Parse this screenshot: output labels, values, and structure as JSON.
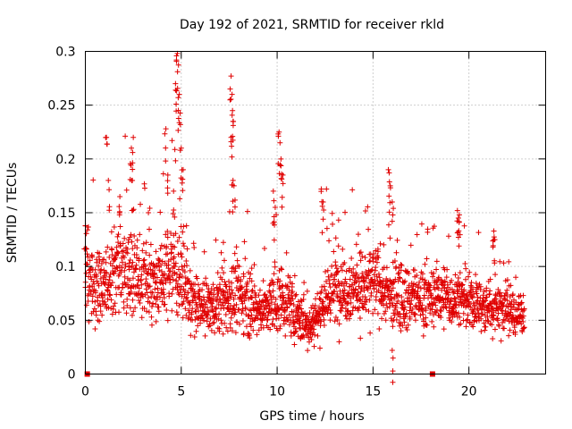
{
  "chart_data": {
    "type": "scatter",
    "title": "Day 192 of 2021, SRMTID for receiver rkld",
    "xlabel": "GPS time / hours",
    "ylabel": "SRMTID / TECUs",
    "xlim": [
      0,
      24
    ],
    "ylim": [
      0,
      0.3
    ],
    "xticks": [
      0,
      5,
      10,
      15,
      20
    ],
    "xtick_labels": [
      "0",
      "5",
      "10",
      "15",
      "20"
    ],
    "yticks": [
      0,
      0.05,
      0.1,
      0.15,
      0.2,
      0.25,
      0.3
    ],
    "ytick_labels": [
      "0",
      "0.05",
      "0.1",
      "0.15",
      "0.2",
      "0.25",
      "0.3"
    ],
    "grid": true,
    "series": [
      {
        "name": "SRMTID",
        "color": "#e00000",
        "marker": "plus",
        "envelope": {
          "x": [
            0,
            0.5,
            1,
            1.5,
            2,
            2.5,
            3,
            3.5,
            4,
            4.5,
            5,
            5.5,
            6,
            6.5,
            7,
            7.5,
            8,
            8.5,
            9,
            9.5,
            10,
            10.5,
            11,
            11.5,
            12,
            12.5,
            13,
            13.5,
            14,
            14.5,
            15,
            15.5,
            16,
            16.5,
            17,
            17.5,
            18,
            18.5,
            19,
            19.5,
            20,
            20.5,
            21,
            21.5,
            22,
            22.5,
            23
          ],
          "center": [
            0.09,
            0.08,
            0.085,
            0.1,
            0.095,
            0.09,
            0.09,
            0.085,
            0.09,
            0.1,
            0.095,
            0.065,
            0.06,
            0.062,
            0.065,
            0.07,
            0.075,
            0.065,
            0.06,
            0.06,
            0.07,
            0.065,
            0.055,
            0.045,
            0.05,
            0.07,
            0.08,
            0.08,
            0.082,
            0.08,
            0.085,
            0.08,
            0.07,
            0.075,
            0.07,
            0.072,
            0.07,
            0.075,
            0.07,
            0.072,
            0.065,
            0.065,
            0.06,
            0.065,
            0.06,
            0.055,
            0.06
          ],
          "spread": [
            0.03,
            0.03,
            0.035,
            0.04,
            0.04,
            0.035,
            0.035,
            0.03,
            0.03,
            0.04,
            0.035,
            0.025,
            0.022,
            0.022,
            0.025,
            0.03,
            0.03,
            0.025,
            0.022,
            0.02,
            0.03,
            0.025,
            0.02,
            0.018,
            0.02,
            0.03,
            0.03,
            0.03,
            0.03,
            0.03,
            0.032,
            0.03,
            0.028,
            0.028,
            0.025,
            0.025,
            0.025,
            0.025,
            0.025,
            0.025,
            0.022,
            0.022,
            0.022,
            0.025,
            0.022,
            0.02,
            0.02
          ]
        },
        "peaks": [
          {
            "x": 0.0,
            "y": 0.138
          },
          {
            "x": 1.1,
            "y": 0.22
          },
          {
            "x": 1.2,
            "y": 0.18
          },
          {
            "x": 1.8,
            "y": 0.165
          },
          {
            "x": 2.4,
            "y": 0.21
          },
          {
            "x": 2.5,
            "y": 0.22
          },
          {
            "x": 2.45,
            "y": 0.18
          },
          {
            "x": 4.2,
            "y": 0.228
          },
          {
            "x": 4.3,
            "y": 0.185
          },
          {
            "x": 4.6,
            "y": 0.17
          },
          {
            "x": 4.7,
            "y": 0.27
          },
          {
            "x": 4.75,
            "y": 0.292
          },
          {
            "x": 4.8,
            "y": 0.298
          },
          {
            "x": 4.85,
            "y": 0.245
          },
          {
            "x": 4.9,
            "y": 0.26
          },
          {
            "x": 5.0,
            "y": 0.21
          },
          {
            "x": 5.1,
            "y": 0.19
          },
          {
            "x": 7.6,
            "y": 0.277
          },
          {
            "x": 7.65,
            "y": 0.26
          },
          {
            "x": 7.7,
            "y": 0.235
          },
          {
            "x": 7.6,
            "y": 0.22
          },
          {
            "x": 7.7,
            "y": 0.18
          },
          {
            "x": 7.75,
            "y": 0.175
          },
          {
            "x": 9.8,
            "y": 0.17
          },
          {
            "x": 9.9,
            "y": 0.155
          },
          {
            "x": 10.1,
            "y": 0.225
          },
          {
            "x": 10.15,
            "y": 0.215
          },
          {
            "x": 10.2,
            "y": 0.2
          },
          {
            "x": 10.3,
            "y": 0.185
          },
          {
            "x": 12.3,
            "y": 0.172
          },
          {
            "x": 12.4,
            "y": 0.16
          },
          {
            "x": 15.8,
            "y": 0.19
          },
          {
            "x": 15.9,
            "y": 0.175
          },
          {
            "x": 16.0,
            "y": 0.16
          },
          {
            "x": 19.4,
            "y": 0.152
          },
          {
            "x": 19.5,
            "y": 0.148
          },
          {
            "x": 19.45,
            "y": 0.145
          },
          {
            "x": 21.3,
            "y": 0.133
          },
          {
            "x": 21.35,
            "y": 0.125
          },
          {
            "x": 16.0,
            "y": 0.022
          }
        ],
        "zero_markers": [
          {
            "x": 0.1,
            "y": 0
          },
          {
            "x": 18.1,
            "y": 0
          }
        ]
      }
    ]
  }
}
